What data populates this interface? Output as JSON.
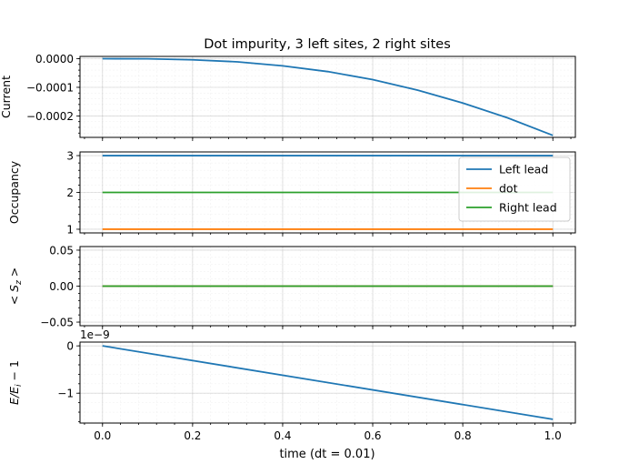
{
  "figure": {
    "title": "Dot impurity, 3 left sites, 2 right sites",
    "xlabel": "time (dt = 0.01)"
  },
  "colors": {
    "C0": "#1f77b4",
    "C1": "#ff7f0e",
    "C2": "#2ca02c"
  },
  "chart_data": [
    {
      "type": "line",
      "ylabel": "Current",
      "xlim": [
        -0.05,
        1.05
      ],
      "ylim": [
        -0.000275,
        8e-06
      ],
      "xticks": [
        0.0,
        0.2,
        0.4,
        0.6,
        0.8,
        1.0
      ],
      "yticks": [
        0.0,
        -0.0001,
        -0.0002
      ],
      "ytick_labels": [
        "0.0000",
        "−0.0001",
        "−0.0002"
      ],
      "grid": true,
      "series": [
        {
          "color": "#1f77b4",
          "x": [
            0.0,
            0.1,
            0.2,
            0.3,
            0.4,
            0.5,
            0.6,
            0.7,
            0.8,
            0.9,
            1.0
          ],
          "y": [
            0.0,
            -3e-07,
            -4e-06,
            -1.1e-05,
            -2.5e-05,
            -4.5e-05,
            -7.3e-05,
            -0.00011,
            -0.000155,
            -0.000207,
            -0.000268
          ]
        }
      ]
    },
    {
      "type": "line",
      "ylabel": "Occupancy",
      "xlim": [
        -0.05,
        1.05
      ],
      "ylim": [
        0.9,
        3.1
      ],
      "xticks": [
        0.0,
        0.2,
        0.4,
        0.6,
        0.8,
        1.0
      ],
      "yticks": [
        1,
        2,
        3
      ],
      "ytick_labels": [
        "1",
        "2",
        "3"
      ],
      "grid": true,
      "legend": "top-right",
      "series": [
        {
          "name": "Left lead",
          "color": "#1f77b4",
          "x": [
            0.0,
            1.0
          ],
          "y": [
            3.0,
            3.0
          ]
        },
        {
          "name": "dot",
          "color": "#ff7f0e",
          "x": [
            0.0,
            1.0
          ],
          "y": [
            1.0,
            1.0
          ]
        },
        {
          "name": "Right lead",
          "color": "#2ca02c",
          "x": [
            0.0,
            1.0
          ],
          "y": [
            2.0,
            2.0
          ]
        }
      ]
    },
    {
      "type": "line",
      "ylabel": "< S_z >",
      "xlim": [
        -0.05,
        1.05
      ],
      "ylim": [
        -0.055,
        0.055
      ],
      "xticks": [
        0.0,
        0.2,
        0.4,
        0.6,
        0.8,
        1.0
      ],
      "yticks": [
        0.05,
        0.0,
        -0.05
      ],
      "ytick_labels": [
        "0.05",
        "0.00",
        "−0.05"
      ],
      "grid": true,
      "series": [
        {
          "color": "#1f77b4",
          "x": [
            0.0,
            1.0
          ],
          "y": [
            0.0,
            0.0
          ]
        },
        {
          "color": "#ff7f0e",
          "x": [
            0.0,
            1.0
          ],
          "y": [
            0.0,
            0.0
          ]
        },
        {
          "color": "#2ca02c",
          "x": [
            0.0,
            1.0
          ],
          "y": [
            0.0,
            0.0
          ]
        }
      ]
    },
    {
      "type": "line",
      "ylabel": "E/E_i − 1",
      "offset_label": "1e−9",
      "xlim": [
        -0.05,
        1.05
      ],
      "ylim": [
        -1.63,
        0.08
      ],
      "xticks": [
        0.0,
        0.2,
        0.4,
        0.6,
        0.8,
        1.0
      ],
      "xtick_labels": [
        "0.0",
        "0.2",
        "0.4",
        "0.6",
        "0.8",
        "1.0"
      ],
      "yticks": [
        0,
        -1
      ],
      "ytick_labels": [
        "0",
        "−1"
      ],
      "grid": true,
      "series": [
        {
          "color": "#1f77b4",
          "x": [
            0.0,
            1.0
          ],
          "y": [
            0.0,
            -1.55
          ]
        }
      ]
    }
  ]
}
